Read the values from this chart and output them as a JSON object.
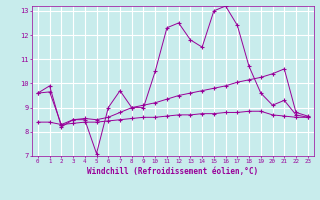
{
  "xlabel": "Windchill (Refroidissement éolien,°C)",
  "bg_color": "#c8ecec",
  "grid_color": "#ffffff",
  "line_color": "#990099",
  "xlim": [
    -0.5,
    23.5
  ],
  "ylim": [
    7,
    13.2
  ],
  "yticks": [
    7,
    8,
    9,
    10,
    11,
    12,
    13
  ],
  "xticks": [
    0,
    1,
    2,
    3,
    4,
    5,
    6,
    7,
    8,
    9,
    10,
    11,
    12,
    13,
    14,
    15,
    16,
    17,
    18,
    19,
    20,
    21,
    22,
    23
  ],
  "series1_x": [
    0,
    1,
    2,
    3,
    4,
    5,
    6,
    7,
    8,
    9,
    10,
    11,
    12,
    13,
    14,
    15,
    16,
    17,
    18,
    19,
    20,
    21,
    22,
    23
  ],
  "series1_y": [
    9.6,
    9.9,
    8.2,
    8.5,
    8.5,
    7.1,
    9.0,
    9.7,
    9.0,
    9.0,
    10.5,
    12.3,
    12.5,
    11.8,
    11.5,
    13.0,
    13.2,
    12.4,
    10.7,
    9.6,
    9.1,
    9.3,
    8.7,
    8.6
  ],
  "series2_x": [
    0,
    1,
    2,
    3,
    4,
    5,
    6,
    7,
    8,
    9,
    10,
    11,
    12,
    13,
    14,
    15,
    16,
    17,
    18,
    19,
    20,
    21,
    22,
    23
  ],
  "series2_y": [
    8.4,
    8.4,
    8.3,
    8.35,
    8.4,
    8.4,
    8.45,
    8.5,
    8.55,
    8.6,
    8.6,
    8.65,
    8.7,
    8.7,
    8.75,
    8.75,
    8.8,
    8.8,
    8.85,
    8.85,
    8.7,
    8.65,
    8.6,
    8.6
  ],
  "series3_x": [
    0,
    1,
    2,
    3,
    4,
    5,
    6,
    7,
    8,
    9,
    10,
    11,
    12,
    13,
    14,
    15,
    16,
    17,
    18,
    19,
    20,
    21,
    22,
    23
  ],
  "series3_y": [
    9.6,
    9.65,
    8.3,
    8.5,
    8.55,
    8.5,
    8.6,
    8.8,
    9.0,
    9.1,
    9.2,
    9.35,
    9.5,
    9.6,
    9.7,
    9.8,
    9.9,
    10.05,
    10.15,
    10.25,
    10.4,
    10.6,
    8.8,
    8.65
  ]
}
